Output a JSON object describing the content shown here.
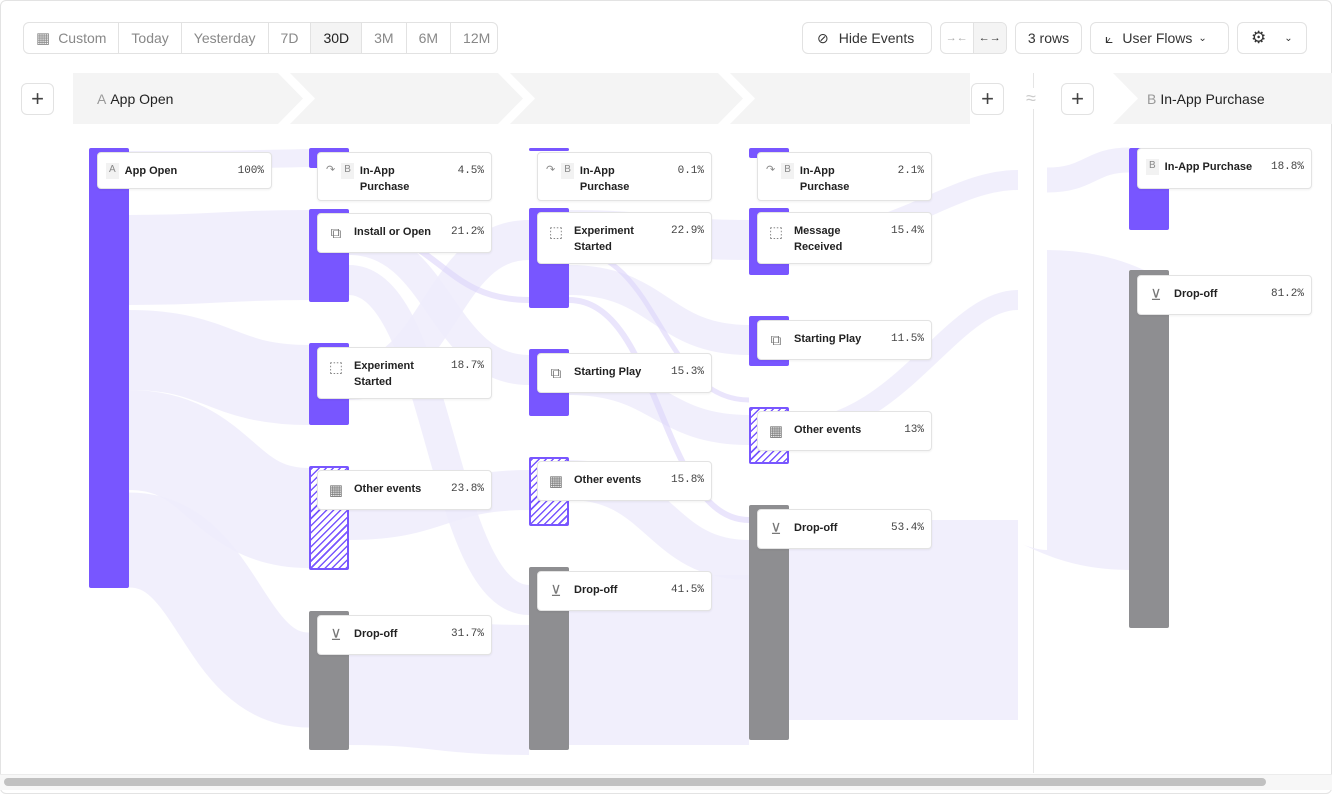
{
  "toolbar": {
    "date_ranges": [
      "Custom",
      "Today",
      "Yesterday",
      "7D",
      "30D",
      "3M",
      "6M",
      "12M"
    ],
    "active_range": "30D",
    "hide_events": "Hide Events",
    "rows": "3 rows",
    "chart_type": "User Flows"
  },
  "steps": {
    "a": {
      "letter": "A",
      "label": "App Open"
    },
    "b": {
      "letter": "B",
      "label": "In-App Purchase"
    },
    "gap_symbol": "≈"
  },
  "columns": [
    {
      "nodes": [
        {
          "letter": "A",
          "name": "App Open",
          "pct": "100%",
          "icon": "letter"
        }
      ]
    },
    {
      "nodes": [
        {
          "letter": "B",
          "name": "In-App Purchase",
          "pct": "4.5%",
          "icon": "redirect-arrow"
        },
        {
          "name": "Install or Open",
          "pct": "21.2%",
          "icon": "copy"
        },
        {
          "name": "Experiment Started",
          "pct": "18.7%",
          "icon": "cursor-click"
        },
        {
          "name": "Other events",
          "pct": "23.8%",
          "icon": "grid"
        },
        {
          "name": "Drop-off",
          "pct": "31.7%",
          "icon": "arrow-down-circle"
        }
      ]
    },
    {
      "nodes": [
        {
          "letter": "B",
          "name": "In-App Purchase",
          "pct": "0.1%",
          "icon": "redirect-arrow"
        },
        {
          "name": "Experiment Started",
          "pct": "22.9%",
          "icon": "cursor-click"
        },
        {
          "name": "Starting Play",
          "pct": "15.3%",
          "icon": "copy"
        },
        {
          "name": "Other events",
          "pct": "15.8%",
          "icon": "grid"
        },
        {
          "name": "Drop-off",
          "pct": "41.5%",
          "icon": "arrow-down-circle"
        }
      ]
    },
    {
      "nodes": [
        {
          "letter": "B",
          "name": "In-App Purchase",
          "pct": "2.1%",
          "icon": "redirect-arrow"
        },
        {
          "name": "Message Received",
          "pct": "15.4%",
          "icon": "cursor-click"
        },
        {
          "name": "Starting Play",
          "pct": "11.5%",
          "icon": "copy"
        },
        {
          "name": "Other events",
          "pct": "13%",
          "icon": "grid"
        },
        {
          "name": "Drop-off",
          "pct": "53.4%",
          "icon": "arrow-down-circle"
        }
      ]
    },
    {
      "nodes": [
        {
          "letter": "B",
          "name": "In-App Purchase",
          "pct": "18.8%",
          "icon": "letter"
        },
        {
          "name": "Drop-off",
          "pct": "81.2%",
          "icon": "arrow-down-circle"
        }
      ]
    }
  ],
  "colors": {
    "accent": "#7856ff",
    "dropoff": "#8e8e91",
    "flow": "#ece8fb"
  }
}
